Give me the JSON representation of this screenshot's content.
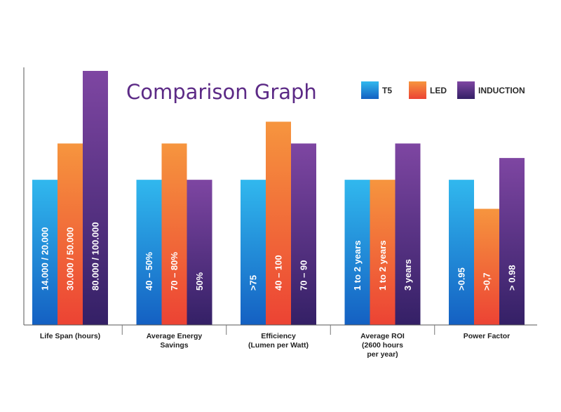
{
  "chart_data": {
    "type": "bar",
    "title": "Comparison Graph",
    "categories": [
      [
        "Life Span (hours)"
      ],
      [
        "Average Energy",
        "Savings"
      ],
      [
        "Efficiency",
        "(Lumen per Watt)"
      ],
      [
        "Average ROI",
        "(2600 hours",
        "per year)"
      ],
      [
        "Power Factor"
      ]
    ],
    "series": [
      {
        "name": "T5",
        "color": "#1e8fe6",
        "values": [
          2,
          2,
          2,
          2,
          2
        ],
        "labels": [
          "14.000 / 20.000",
          "40 – 50%",
          ">75",
          "1 to 2 years",
          ">0.95"
        ]
      },
      {
        "name": "LED",
        "color": "#f2703a",
        "values": [
          2.5,
          2.5,
          2.8,
          2,
          1.6
        ],
        "labels": [
          "30.000 / 50.000",
          "70 – 80%",
          "40 – 100",
          "1 to 2 years",
          ">0,7"
        ]
      },
      {
        "name": "INDUCTION",
        "color": "#5c2a86",
        "values": [
          3.5,
          2,
          2.5,
          2.5,
          2.3
        ],
        "labels": [
          "80.000 / 100.000",
          "50%",
          "70 – 90",
          "3 years",
          "> 0.98"
        ]
      }
    ],
    "ylim": [
      0,
      3.5
    ],
    "grid": false,
    "legend": "top-right",
    "xlabel": "",
    "ylabel": ""
  }
}
